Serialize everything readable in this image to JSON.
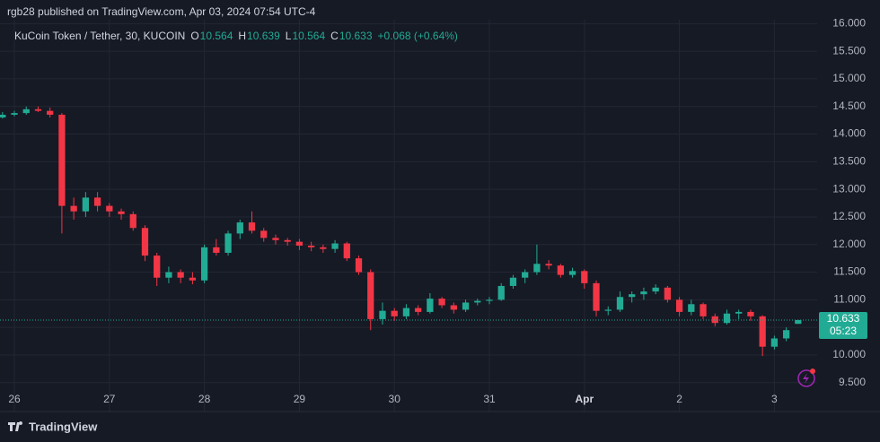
{
  "chart_data": {
    "type": "candlestick",
    "published": "rgb28 published on TradingView.com, Apr 03, 2024 07:54 UTC-4",
    "symbol": "KuCoin Token / Tether, 30, KUCOIN",
    "ohlc_letters": [
      "O",
      "H",
      "L",
      "C"
    ],
    "change_label": "+0.068 (+0.64%)",
    "countdown": "05:23",
    "brand": "TradingView",
    "up_color": "#22ab94",
    "down_color": "#f23645",
    "grid": true,
    "x": [
      "2024-03-25T21:00",
      "2024-03-26T00:00",
      "2024-03-26T03:00",
      "2024-03-26T06:00",
      "2024-03-26T09:00",
      "2024-03-26T12:00",
      "2024-03-26T15:00",
      "2024-03-26T18:00",
      "2024-03-26T21:00",
      "2024-03-27T00:00",
      "2024-03-27T03:00",
      "2024-03-27T06:00",
      "2024-03-27T09:00",
      "2024-03-27T12:00",
      "2024-03-27T15:00",
      "2024-03-27T18:00",
      "2024-03-27T21:00",
      "2024-03-28T00:00",
      "2024-03-28T03:00",
      "2024-03-28T06:00",
      "2024-03-28T09:00",
      "2024-03-28T12:00",
      "2024-03-28T15:00",
      "2024-03-28T18:00",
      "2024-03-28T21:00",
      "2024-03-29T00:00",
      "2024-03-29T03:00",
      "2024-03-29T06:00",
      "2024-03-29T09:00",
      "2024-03-29T12:00",
      "2024-03-29T15:00",
      "2024-03-29T18:00",
      "2024-03-29T21:00",
      "2024-03-30T00:00",
      "2024-03-30T03:00",
      "2024-03-30T06:00",
      "2024-03-30T09:00",
      "2024-03-30T12:00",
      "2024-03-30T15:00",
      "2024-03-30T18:00",
      "2024-03-30T21:00",
      "2024-03-31T00:00",
      "2024-03-31T03:00",
      "2024-03-31T06:00",
      "2024-03-31T09:00",
      "2024-03-31T12:00",
      "2024-03-31T15:00",
      "2024-03-31T18:00",
      "2024-03-31T21:00",
      "2024-04-01T00:00",
      "2024-04-01T03:00",
      "2024-04-01T06:00",
      "2024-04-01T09:00",
      "2024-04-01T12:00",
      "2024-04-01T15:00",
      "2024-04-01T18:00",
      "2024-04-01T21:00",
      "2024-04-02T00:00",
      "2024-04-02T03:00",
      "2024-04-02T06:00",
      "2024-04-02T09:00",
      "2024-04-02T12:00",
      "2024-04-02T15:00",
      "2024-04-02T18:00",
      "2024-04-02T21:00",
      "2024-04-03T00:00",
      "2024-04-03T03:00",
      "2024-04-03T06:00"
    ],
    "open": [
      14.3,
      14.35,
      14.38,
      14.45,
      14.42,
      14.35,
      12.7,
      12.6,
      12.85,
      12.7,
      12.6,
      12.55,
      12.3,
      11.8,
      11.4,
      11.5,
      11.4,
      11.35,
      11.95,
      11.85,
      12.2,
      12.4,
      12.25,
      12.12,
      12.08,
      12.05,
      11.98,
      11.95,
      11.92,
      12.02,
      11.75,
      11.5,
      10.65,
      10.8,
      10.7,
      10.85,
      10.78,
      11.02,
      10.9,
      10.82,
      10.95,
      10.98,
      11.0,
      11.25,
      11.4,
      11.5,
      11.65,
      11.62,
      11.45,
      11.52,
      11.3,
      10.8,
      10.82,
      11.05,
      11.1,
      11.15,
      11.22,
      11.0,
      10.78,
      10.92,
      10.7,
      10.58,
      10.75,
      10.78,
      10.7,
      10.15,
      10.3,
      10.564
    ],
    "high": [
      14.4,
      14.42,
      14.5,
      14.5,
      14.48,
      14.38,
      12.85,
      12.95,
      12.95,
      12.75,
      12.65,
      12.6,
      12.35,
      11.85,
      11.6,
      11.55,
      11.5,
      12.0,
      12.1,
      12.25,
      12.45,
      12.6,
      12.3,
      12.18,
      12.12,
      12.1,
      12.05,
      12.0,
      12.08,
      12.05,
      11.8,
      11.55,
      10.95,
      10.85,
      10.92,
      10.9,
      11.12,
      11.05,
      10.95,
      11.0,
      11.02,
      11.05,
      11.3,
      11.45,
      11.55,
      12.0,
      11.72,
      11.65,
      11.58,
      11.55,
      11.35,
      10.88,
      11.15,
      11.15,
      11.22,
      11.28,
      11.25,
      11.05,
      11.0,
      10.95,
      10.75,
      10.82,
      10.82,
      10.82,
      10.72,
      10.35,
      10.5,
      10.639
    ],
    "low": [
      14.28,
      14.32,
      14.35,
      14.4,
      14.3,
      12.2,
      12.45,
      12.5,
      12.6,
      12.5,
      12.45,
      12.25,
      11.7,
      11.25,
      11.3,
      11.3,
      11.28,
      11.3,
      11.8,
      11.8,
      12.1,
      12.2,
      12.05,
      12.0,
      11.98,
      11.9,
      11.88,
      11.85,
      11.85,
      11.7,
      11.45,
      10.45,
      10.55,
      10.62,
      10.65,
      10.72,
      10.75,
      10.85,
      10.75,
      10.78,
      10.9,
      10.92,
      10.98,
      11.2,
      11.3,
      11.45,
      11.55,
      11.4,
      11.4,
      11.2,
      10.7,
      10.72,
      10.78,
      10.95,
      11.0,
      11.1,
      10.95,
      10.7,
      10.72,
      10.65,
      10.52,
      10.55,
      10.65,
      10.62,
      9.98,
      10.1,
      10.25,
      10.564
    ],
    "close": [
      14.35,
      14.38,
      14.45,
      14.42,
      14.35,
      12.7,
      12.6,
      12.85,
      12.7,
      12.6,
      12.55,
      12.3,
      11.8,
      11.4,
      11.5,
      11.4,
      11.35,
      11.95,
      11.85,
      12.2,
      12.4,
      12.25,
      12.12,
      12.08,
      12.05,
      11.98,
      11.95,
      11.92,
      12.02,
      11.75,
      11.5,
      10.65,
      10.8,
      10.7,
      10.85,
      10.78,
      11.02,
      10.9,
      10.82,
      10.95,
      10.98,
      11.0,
      11.25,
      11.4,
      11.5,
      11.65,
      11.62,
      11.45,
      11.52,
      11.3,
      10.8,
      10.82,
      11.05,
      11.1,
      11.15,
      11.22,
      11.0,
      10.78,
      10.92,
      10.7,
      10.58,
      10.75,
      10.78,
      10.7,
      10.15,
      10.3,
      10.45,
      10.633
    ],
    "xlim": [
      "2024-03-25T20:22",
      "2024-04-03T10:48"
    ],
    "xticks": [
      {
        "value": "2024-03-26T00:00",
        "label": "26"
      },
      {
        "value": "2024-03-27T00:00",
        "label": "27"
      },
      {
        "value": "2024-03-28T00:00",
        "label": "28"
      },
      {
        "value": "2024-03-29T00:00",
        "label": "29"
      },
      {
        "value": "2024-03-30T00:00",
        "label": "30"
      },
      {
        "value": "2024-03-31T00:00",
        "label": "31"
      },
      {
        "value": "2024-04-01T00:00",
        "label": "Apr"
      },
      {
        "value": "2024-04-02T00:00",
        "label": "2"
      },
      {
        "value": "2024-04-03T00:00",
        "label": "3"
      }
    ],
    "ylim": [
      9.35,
      16.07
    ],
    "yticks": [
      {
        "value": 9.5,
        "label": "9.500"
      },
      {
        "value": 10,
        "label": "10.000"
      },
      {
        "value": 10.5,
        "label": "10.500"
      },
      {
        "value": 11,
        "label": "11.000"
      },
      {
        "value": 11.5,
        "label": "11.500"
      },
      {
        "value": 12,
        "label": "12.000"
      },
      {
        "value": 12.5,
        "label": "12.500"
      },
      {
        "value": 13,
        "label": "13.000"
      },
      {
        "value": 13.5,
        "label": "13.500"
      },
      {
        "value": 14,
        "label": "14.000"
      },
      {
        "value": 14.5,
        "label": "14.500"
      },
      {
        "value": 15,
        "label": "15.000"
      },
      {
        "value": 15.5,
        "label": "15.500"
      },
      {
        "value": 16,
        "label": "16.000"
      }
    ]
  }
}
